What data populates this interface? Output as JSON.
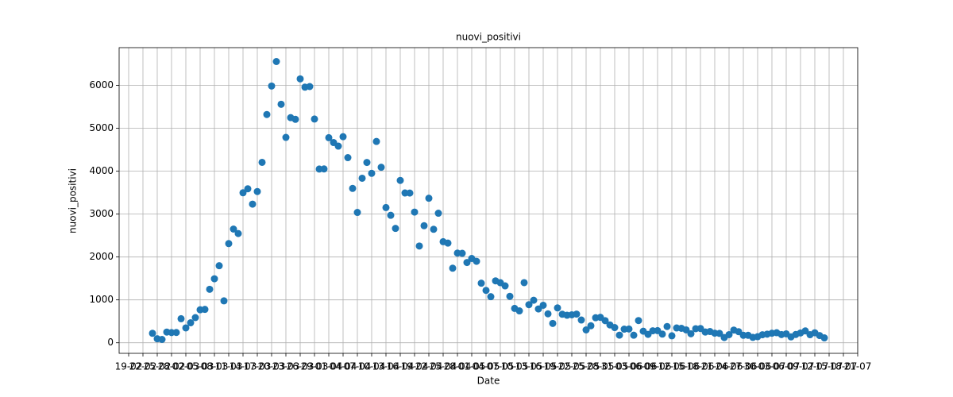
{
  "chart_data": {
    "type": "scatter",
    "title": "nuovi_positivi",
    "x_label": "Date",
    "y_label": "nuovi_positivi",
    "color": "#1f77b4",
    "grid": true,
    "x": [
      "24-02",
      "25-02",
      "26-02",
      "27-02",
      "28-02",
      "29-02",
      "01-03",
      "02-03",
      "03-03",
      "04-03",
      "05-03",
      "06-03",
      "07-03",
      "08-03",
      "09-03",
      "10-03",
      "11-03",
      "12-03",
      "13-03",
      "14-03",
      "15-03",
      "16-03",
      "17-03",
      "18-03",
      "19-03",
      "20-03",
      "21-03",
      "22-03",
      "23-03",
      "24-03",
      "25-03",
      "26-03",
      "27-03",
      "28-03",
      "29-03",
      "30-03",
      "31-03",
      "01-04",
      "02-04",
      "03-04",
      "04-04",
      "05-04",
      "06-04",
      "07-04",
      "08-04",
      "09-04",
      "10-04",
      "11-04",
      "12-04",
      "13-04",
      "14-04",
      "15-04",
      "16-04",
      "17-04",
      "18-04",
      "19-04",
      "20-04",
      "21-04",
      "22-04",
      "23-04",
      "24-04",
      "25-04",
      "26-04",
      "27-04",
      "28-04",
      "29-04",
      "30-04",
      "01-05",
      "02-05",
      "03-05",
      "04-05",
      "05-05",
      "06-05",
      "07-05",
      "08-05",
      "09-05",
      "10-05",
      "11-05",
      "12-05",
      "13-05",
      "14-05",
      "15-05",
      "16-05",
      "17-05",
      "18-05",
      "19-05",
      "20-05",
      "21-05",
      "22-05",
      "23-05",
      "24-05",
      "25-05",
      "26-05",
      "27-05",
      "28-05",
      "29-05",
      "30-05",
      "31-05",
      "01-06",
      "02-06",
      "03-06",
      "04-06",
      "05-06",
      "06-06",
      "07-06",
      "08-06",
      "09-06",
      "10-06",
      "11-06",
      "12-06",
      "13-06",
      "14-06",
      "15-06",
      "16-06",
      "17-06",
      "18-06",
      "19-06",
      "20-06",
      "21-06",
      "22-06",
      "23-06",
      "24-06",
      "25-06",
      "26-06",
      "27-06",
      "28-06",
      "29-06",
      "30-06",
      "01-07",
      "02-07",
      "03-07",
      "04-07",
      "05-07",
      "06-07",
      "07-07",
      "08-07",
      "09-07",
      "10-07",
      "11-07",
      "12-07",
      "13-07",
      "14-07"
    ],
    "values": [
      221,
      93,
      78,
      250,
      238,
      240,
      561,
      347,
      466,
      587,
      769,
      778,
      1247,
      1492,
      1797,
      977,
      2313,
      2651,
      2547,
      3497,
      3590,
      3233,
      3526,
      4207,
      5322,
      5986,
      6557,
      5560,
      4789,
      5249,
      5210,
      6153,
      5959,
      5974,
      5217,
      4050,
      4053,
      4782,
      4668,
      4585,
      4805,
      4316,
      3599,
      3039,
      3836,
      4204,
      3951,
      4694,
      4092,
      3153,
      2972,
      2667,
      3786,
      3493,
      3491,
      3047,
      2256,
      2729,
      3370,
      2646,
      3021,
      2357,
      2324,
      1739,
      2091,
      2086,
      1872,
      1965,
      1900,
      1389,
      1221,
      1075,
      1444,
      1401,
      1327,
      1083,
      802,
      744,
      1402,
      888,
      992,
      789,
      875,
      675,
      451,
      813,
      665,
      642,
      652,
      669,
      531,
      300,
      397,
      584,
      593,
      516,
      416,
      355,
      178,
      318,
      321,
      177,
      518,
      270,
      197,
      280,
      283,
      202,
      379,
      163,
      346,
      338,
      301,
      210,
      329,
      333,
      251,
      262,
      224,
      218,
      122,
      190,
      296,
      259,
      175,
      174,
      126,
      142,
      187,
      201,
      223,
      235,
      192,
      208,
      138,
      193,
      229,
      276,
      188,
      234,
      169,
      114
    ],
    "xlim": [
      "17-02",
      "21-07"
    ],
    "xticks": [
      "19-02",
      "22-02",
      "25-02",
      "28-02",
      "02-03",
      "05-03",
      "08-03",
      "11-03",
      "14-03",
      "17-03",
      "20-03",
      "23-03",
      "26-03",
      "29-03",
      "01-04",
      "04-04",
      "07-04",
      "10-04",
      "13-04",
      "16-04",
      "19-04",
      "22-04",
      "25-04",
      "28-04",
      "01-05",
      "04-05",
      "07-05",
      "10-05",
      "13-05",
      "16-05",
      "19-05",
      "22-05",
      "25-05",
      "28-05",
      "31-05",
      "03-06",
      "06-06",
      "09-06",
      "12-06",
      "15-06",
      "18-06",
      "21-06",
      "24-06",
      "27-06",
      "30-06",
      "03-07",
      "06-07",
      "09-07",
      "12-07",
      "15-07",
      "18-07",
      "21-07"
    ],
    "ylim": [
      -246,
      6881
    ],
    "yticks": [
      0,
      1000,
      2000,
      3000,
      4000,
      5000,
      6000
    ]
  }
}
